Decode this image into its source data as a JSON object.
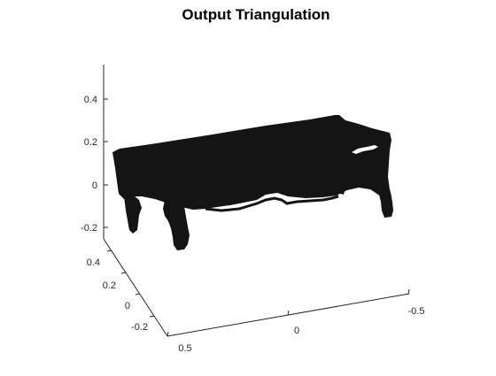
{
  "figure": {
    "background": "#ffffff"
  },
  "chart_data": {
    "type": "3d-surface",
    "title": "Output Triangulation",
    "xlabel": "",
    "ylabel": "",
    "zlabel": "",
    "grid": false,
    "legend": "none",
    "mesh_color": "#141414",
    "axis_color": "#262626",
    "x_axis": {
      "ticks": [
        0.5,
        0,
        -0.5
      ],
      "tick_labels": [
        "0.5",
        "0",
        "-0.5"
      ]
    },
    "y_axis": {
      "ticks": [
        0.4,
        0.2,
        0,
        -0.2
      ],
      "tick_labels": [
        "0.4",
        "0.2",
        "0",
        "-0.2"
      ]
    },
    "z_axis": {
      "ticks": [
        0.4,
        0.2,
        0,
        -0.2
      ],
      "tick_labels": [
        "0.4",
        "0.2",
        "0",
        "-0.2"
      ]
    },
    "object": "table-shaped triangulated mesh rendered solid"
  }
}
